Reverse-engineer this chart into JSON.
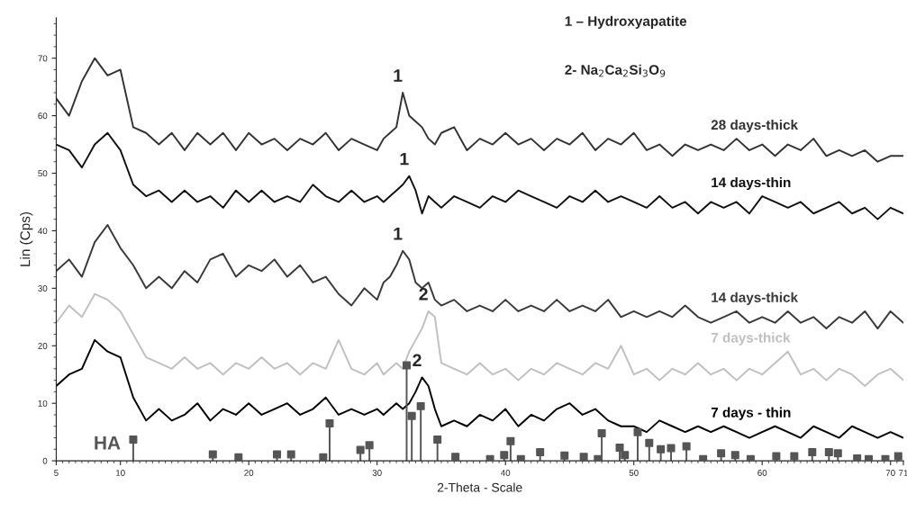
{
  "chart_data": {
    "type": "line",
    "xlabel": "2-Theta - Scale",
    "ylabel": "Lin (Cps)",
    "xlim": [
      5,
      71
    ],
    "xticks": [
      5,
      10,
      20,
      30,
      40,
      50,
      60,
      70,
      71
    ],
    "ylim": [
      0,
      77
    ],
    "yticks": [
      0,
      10,
      20,
      30,
      40,
      50,
      60,
      70
    ],
    "grid": false,
    "legend": false,
    "x": [
      5,
      6,
      7,
      8,
      9,
      10,
      11,
      12,
      13,
      14,
      15,
      16,
      17,
      18,
      19,
      20,
      21,
      22,
      23,
      24,
      25,
      26,
      27,
      28,
      29,
      30,
      30.5,
      31,
      31.5,
      32,
      32.5,
      33,
      33.5,
      34,
      34.5,
      35,
      36,
      37,
      38,
      39,
      40,
      41,
      42,
      43,
      44,
      45,
      46,
      47,
      48,
      49,
      50,
      51,
      52,
      53,
      54,
      55,
      56,
      57,
      58,
      59,
      60,
      61,
      62,
      63,
      64,
      65,
      66,
      67,
      68,
      69,
      70,
      71
    ],
    "series": [
      {
        "name": "28 days-thick",
        "color": "#333333",
        "values": [
          63,
          60,
          66,
          70,
          67,
          68,
          58,
          57,
          55,
          57,
          54,
          57,
          55,
          57,
          54,
          57,
          55,
          56,
          54,
          56,
          55,
          57,
          54,
          56,
          55,
          54,
          56,
          57,
          58,
          64,
          60,
          59,
          58,
          56,
          55,
          57,
          58,
          54,
          56,
          55,
          57,
          55,
          56,
          54,
          56,
          55,
          57,
          54,
          56,
          55,
          57,
          54,
          55,
          53,
          55,
          54,
          55,
          54,
          56,
          54,
          55,
          53,
          55,
          54,
          56,
          53,
          54,
          53,
          54,
          52,
          53,
          53
        ]
      },
      {
        "name": "14 days-thin",
        "color": "#111111",
        "values": [
          55,
          54,
          51,
          55,
          57,
          54,
          48,
          46,
          47,
          45,
          47,
          45,
          46,
          44,
          47,
          45,
          47,
          45,
          46,
          45,
          48,
          46,
          45,
          47,
          45,
          46,
          45,
          46,
          47,
          48,
          49.5,
          47,
          43,
          46,
          45,
          44,
          46,
          45,
          44,
          46,
          45,
          47,
          46,
          45,
          44,
          46,
          45,
          47,
          45,
          46,
          45,
          44,
          46,
          44,
          45,
          43,
          45,
          44,
          45,
          43,
          46,
          45,
          44,
          45,
          43,
          44,
          45,
          43,
          44,
          42,
          44,
          43
        ]
      },
      {
        "name": "14 days-thick",
        "color": "#3a3a3a",
        "values": [
          33,
          35,
          32,
          38,
          41,
          37,
          34,
          30,
          32,
          30,
          33,
          31,
          35,
          36,
          32,
          34,
          33,
          35,
          32,
          34,
          31,
          32,
          29,
          27,
          30,
          28,
          31,
          32,
          34,
          36.5,
          35,
          31,
          30,
          31,
          28,
          27,
          28,
          26,
          27,
          26,
          28,
          26,
          27,
          26,
          28,
          26,
          27,
          26,
          28,
          25,
          26,
          25,
          26,
          25,
          27,
          25,
          24,
          25,
          26,
          24,
          25,
          24,
          26,
          24,
          25,
          23,
          25,
          24,
          26,
          23,
          26,
          24
        ]
      },
      {
        "name": "7 days-thick",
        "color": "#c0c0c0",
        "values": [
          24,
          27,
          25,
          29,
          28,
          26,
          22,
          18,
          17,
          16,
          18,
          16,
          17,
          15,
          17,
          16,
          18,
          16,
          17,
          15,
          17,
          16,
          21,
          16,
          15,
          17,
          15,
          16,
          17,
          16,
          19,
          21,
          23,
          26,
          25,
          17,
          16,
          15,
          17,
          15,
          16,
          14,
          16,
          15,
          17,
          16,
          15,
          17,
          16,
          20,
          15,
          16,
          14,
          16,
          15,
          17,
          15,
          16,
          14,
          16,
          15,
          17,
          19,
          15,
          16,
          14,
          16,
          15,
          13,
          15,
          16,
          14
        ]
      },
      {
        "name": "7 days - thin",
        "color": "#000000",
        "values": [
          13,
          15,
          16,
          21,
          19,
          18,
          11,
          7,
          9,
          7,
          8,
          10,
          7,
          9,
          8,
          10,
          8,
          9,
          10,
          8,
          9,
          11,
          8,
          9,
          8,
          9,
          8,
          9,
          10,
          9,
          10,
          12,
          14.5,
          13,
          9,
          6,
          7,
          6,
          8,
          7,
          9,
          6,
          8,
          7,
          9,
          10,
          8,
          9,
          7,
          6,
          6,
          5,
          7,
          6,
          5,
          6,
          5,
          6,
          5,
          4,
          5,
          6,
          5,
          4,
          6,
          5,
          4,
          6,
          5,
          4,
          5,
          4
        ]
      },
      {
        "name": "HA",
        "type": "lollipop",
        "color": "#555555",
        "marker": "square",
        "x": [
          11.0,
          17.2,
          19.2,
          22.2,
          23.3,
          25.8,
          26.3,
          28.7,
          29.4,
          32.3,
          32.7,
          33.4,
          34.7,
          36.1,
          38.8,
          39.9,
          40.4,
          41.2,
          42.7,
          44.6,
          46.1,
          47.2,
          47.5,
          48.9,
          49.3,
          50.3,
          51.2,
          52.1,
          52.9,
          54.1,
          55.4,
          56.8,
          57.9,
          59.1,
          61.1,
          62.5,
          63.9,
          65.2,
          65.9,
          67.4,
          68.3,
          69.6,
          70.6
        ],
        "values": [
          3.7,
          1.1,
          0.6,
          1.1,
          1.1,
          0.6,
          6.5,
          1.9,
          2.7,
          16.6,
          7.8,
          9.5,
          3.7,
          0.7,
          0.3,
          1.0,
          3.4,
          0.3,
          1.5,
          0.9,
          0.7,
          0.3,
          4.8,
          2.3,
          1.0,
          5.0,
          3.1,
          2.0,
          2.2,
          2.5,
          0.3,
          1.3,
          1.0,
          0.3,
          0.8,
          0.8,
          1.5,
          1.5,
          1.3,
          0.4,
          0.3,
          0.3,
          0.8
        ]
      }
    ],
    "annotations": [
      "1 – Hydroxyapatite",
      "2- Na$_{2}$Ca$_{2}$Si$_{3}$O$_{9}$",
      {
        "text": "1",
        "x": 32,
        "y": 64
      },
      {
        "text": "1",
        "x": 32.5,
        "y": 49.5
      },
      {
        "text": "1",
        "x": 32,
        "y": 36.5
      },
      {
        "text": "2",
        "x": 34,
        "y": 26
      },
      {
        "text": "2",
        "x": 33.5,
        "y": 14.5
      }
    ]
  }
}
